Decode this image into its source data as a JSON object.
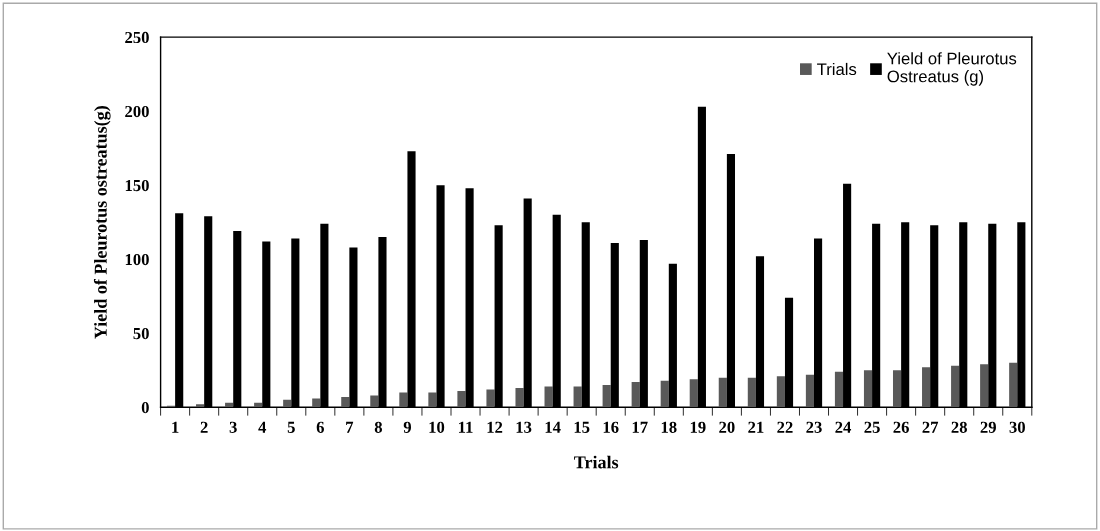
{
  "chart_data": {
    "type": "bar",
    "xlabel": "Trials",
    "ylabel": "Yield of Pleurotus ostreatus(g)",
    "categories": [
      "1",
      "2",
      "3",
      "4",
      "5",
      "6",
      "7",
      "8",
      "9",
      "10",
      "11",
      "12",
      "13",
      "14",
      "15",
      "16",
      "17",
      "18",
      "19",
      "20",
      "21",
      "22",
      "23",
      "24",
      "25",
      "26",
      "27",
      "28",
      "29",
      "30"
    ],
    "series": [
      {
        "name": "Trials",
        "color": "#595959",
        "values": [
          1,
          2,
          3,
          3,
          5,
          6,
          7,
          8,
          10,
          10,
          11,
          12,
          13,
          14,
          14,
          15,
          17,
          18,
          19,
          20,
          20,
          21,
          22,
          24,
          25,
          25,
          27,
          28,
          29,
          30
        ]
      },
      {
        "name": "Yield of Pleurotus\nOstreatus (g)",
        "color": "#000000",
        "values": [
          131,
          129,
          119,
          112,
          114,
          124,
          108,
          115,
          173,
          150,
          148,
          123,
          141,
          130,
          125,
          111,
          113,
          97,
          203,
          171,
          102,
          74,
          114,
          151,
          124,
          125,
          123,
          125,
          124,
          125
        ]
      }
    ],
    "ylim": [
      0,
      250
    ],
    "yticks": [
      0,
      50,
      100,
      150,
      200,
      250
    ],
    "grid": false,
    "legend": "top right"
  }
}
